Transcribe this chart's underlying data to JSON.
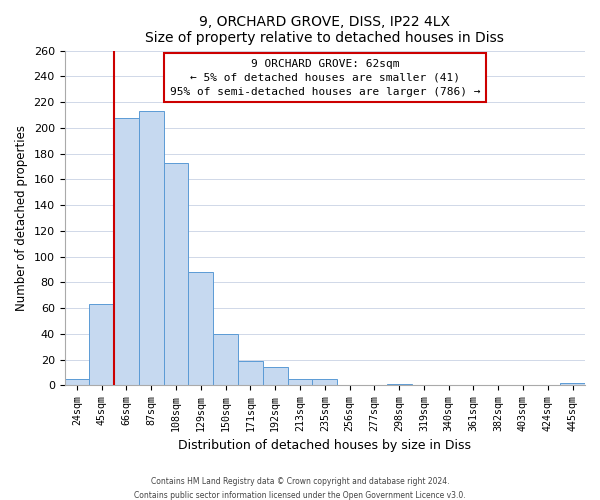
{
  "title": "9, ORCHARD GROVE, DISS, IP22 4LX",
  "subtitle": "Size of property relative to detached houses in Diss",
  "xlabel": "Distribution of detached houses by size in Diss",
  "ylabel": "Number of detached properties",
  "bar_labels": [
    "24sqm",
    "45sqm",
    "66sqm",
    "87sqm",
    "108sqm",
    "129sqm",
    "150sqm",
    "171sqm",
    "192sqm",
    "213sqm",
    "235sqm",
    "256sqm",
    "277sqm",
    "298sqm",
    "319sqm",
    "340sqm",
    "361sqm",
    "382sqm",
    "403sqm",
    "424sqm",
    "445sqm"
  ],
  "bar_values": [
    5,
    63,
    208,
    213,
    173,
    88,
    40,
    19,
    14,
    5,
    5,
    0,
    0,
    1,
    0,
    0,
    0,
    0,
    0,
    0,
    2
  ],
  "bar_color": "#c6d9f0",
  "bar_edge_color": "#5b9bd5",
  "property_line_color": "#cc0000",
  "property_line_x": 1.5,
  "annotation_line1": "9 ORCHARD GROVE: 62sqm",
  "annotation_line2": "← 5% of detached houses are smaller (41)",
  "annotation_line3": "95% of semi-detached houses are larger (786) →",
  "annotation_box_facecolor": "#ffffff",
  "annotation_box_edgecolor": "#cc0000",
  "ylim": [
    0,
    260
  ],
  "yticks": [
    0,
    20,
    40,
    60,
    80,
    100,
    120,
    140,
    160,
    180,
    200,
    220,
    240,
    260
  ],
  "grid_color": "#d0d8e8",
  "footer_line1": "Contains HM Land Registry data © Crown copyright and database right 2024.",
  "footer_line2": "Contains public sector information licensed under the Open Government Licence v3.0."
}
